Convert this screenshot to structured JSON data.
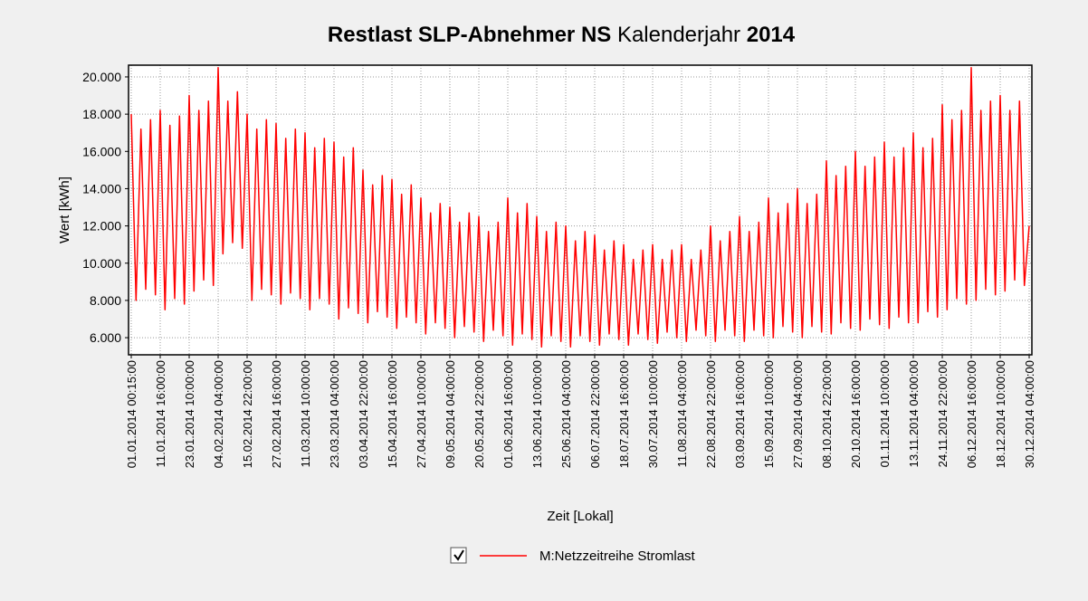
{
  "chart_data": {
    "type": "line",
    "title_parts": [
      {
        "text": "Restlast  SLP-Abnehmer NS",
        "bold": true
      },
      {
        "text": " Kalenderjahr ",
        "bold": false
      },
      {
        "text": "2014",
        "bold": true
      }
    ],
    "x_label": "Zeit [Lokal]",
    "y_label": "Wert [kWh]",
    "categories": [
      "01.01.2014 00:15:00",
      null,
      null,
      null,
      null,
      null,
      "11.01.2014 16:00:00",
      null,
      null,
      null,
      null,
      null,
      "23.01.2014 10:00:00",
      null,
      null,
      null,
      null,
      null,
      "04.02.2014 04:00:00",
      null,
      null,
      null,
      null,
      null,
      "15.02.2014 22:00:00",
      null,
      null,
      null,
      null,
      null,
      "27.02.2014 16:00:00",
      null,
      null,
      null,
      null,
      null,
      "11.03.2014 10:00:00",
      null,
      null,
      null,
      null,
      null,
      "23.03.2014 04:00:00",
      null,
      null,
      null,
      null,
      null,
      "03.04.2014 22:00:00",
      null,
      null,
      null,
      null,
      null,
      "15.04.2014 16:00:00",
      null,
      null,
      null,
      null,
      null,
      "27.04.2014 10:00:00",
      null,
      null,
      null,
      null,
      null,
      "09.05.2014 04:00:00",
      null,
      null,
      null,
      null,
      null,
      "20.05.2014 22:00:00",
      null,
      null,
      null,
      null,
      null,
      "01.06.2014 16:00:00",
      null,
      null,
      null,
      null,
      null,
      "13.06.2014 10:00:00",
      null,
      null,
      null,
      null,
      null,
      "25.06.2014 04:00:00",
      null,
      null,
      null,
      null,
      null,
      "06.07.2014 22:00:00",
      null,
      null,
      null,
      null,
      null,
      "18.07.2014 16:00:00",
      null,
      null,
      null,
      null,
      null,
      "30.07.2014 10:00:00",
      null,
      null,
      null,
      null,
      null,
      "11.08.2014 04:00:00",
      null,
      null,
      null,
      null,
      null,
      "22.08.2014 22:00:00",
      null,
      null,
      null,
      null,
      null,
      "03.09.2014 16:00:00",
      null,
      null,
      null,
      null,
      null,
      "15.09.2014 10:00:00",
      null,
      null,
      null,
      null,
      null,
      "27.09.2014 04:00:00",
      null,
      null,
      null,
      null,
      null,
      "08.10.2014 22:00:00",
      null,
      null,
      null,
      null,
      null,
      "20.10.2014 16:00:00",
      null,
      null,
      null,
      null,
      null,
      "01.11.2014 10:00:00",
      null,
      null,
      null,
      null,
      null,
      "13.11.2014 04:00:00",
      null,
      null,
      null,
      null,
      null,
      "24.11.2014 22:00:00",
      null,
      null,
      null,
      null,
      null,
      "06.12.2014 16:00:00",
      null,
      null,
      null,
      null,
      null,
      "18.12.2014 10:00:00",
      null,
      null,
      null,
      null,
      null,
      "30.12.2014 04:00:00"
    ],
    "series": [
      {
        "name": "M:Netzzeitreihe Stromlast",
        "color": "#ff0000",
        "values": [
          18000,
          8000,
          17200,
          8600,
          17700,
          8300,
          18200,
          7500,
          17400,
          8100,
          17900,
          7800,
          19000,
          8500,
          18200,
          9100,
          18700,
          8800,
          20500,
          10500,
          18700,
          11100,
          19200,
          10800,
          18000,
          8000,
          17200,
          8600,
          17700,
          8300,
          17500,
          7800,
          16700,
          8400,
          17200,
          8100,
          17000,
          7500,
          16200,
          8100,
          16700,
          7800,
          16500,
          7000,
          15700,
          7600,
          16200,
          7300,
          15000,
          6800,
          14200,
          7400,
          14700,
          7100,
          14500,
          6500,
          13700,
          7100,
          14200,
          6800,
          13500,
          6200,
          12700,
          6800,
          13200,
          6500,
          13000,
          6000,
          12200,
          6600,
          12700,
          6300,
          12500,
          5800,
          11700,
          6400,
          12200,
          6100,
          13500,
          5600,
          12700,
          6200,
          13200,
          5900,
          12500,
          5500,
          11700,
          6100,
          12200,
          5800,
          12000,
          5500,
          11200,
          6100,
          11700,
          5800,
          11500,
          5600,
          10700,
          6200,
          11200,
          5900,
          11000,
          5600,
          10200,
          6200,
          10700,
          5900,
          11000,
          5700,
          10200,
          6300,
          10700,
          6000,
          11000,
          5800,
          10200,
          6400,
          10700,
          6100,
          12000,
          5800,
          11200,
          6400,
          11700,
          6100,
          12500,
          5800,
          11700,
          6400,
          12200,
          6100,
          13500,
          6000,
          12700,
          6600,
          13200,
          6300,
          14000,
          6000,
          13200,
          6600,
          13700,
          6300,
          15500,
          6200,
          14700,
          6800,
          15200,
          6500,
          16000,
          6400,
          15200,
          7000,
          15700,
          6700,
          16500,
          6500,
          15700,
          7100,
          16200,
          6800,
          17000,
          6800,
          16200,
          7400,
          16700,
          7100,
          18500,
          7500,
          17700,
          8100,
          18200,
          7800,
          20500,
          8000,
          18200,
          8600,
          18700,
          8300,
          19000,
          8500,
          18200,
          9100,
          18700,
          8800,
          12000
        ]
      }
    ],
    "ylim": [
      5080,
      20630
    ],
    "yticks": [
      {
        "value": 6000,
        "label": "6.000"
      },
      {
        "value": 8000,
        "label": "8.000"
      },
      {
        "value": 10000,
        "label": "10.000"
      },
      {
        "value": 12000,
        "label": "12.000"
      },
      {
        "value": 14000,
        "label": "14.000"
      },
      {
        "value": 16000,
        "label": "16.000"
      },
      {
        "value": 18000,
        "label": "18.000"
      },
      {
        "value": 20000,
        "label": "20.000"
      }
    ],
    "grid": true
  }
}
